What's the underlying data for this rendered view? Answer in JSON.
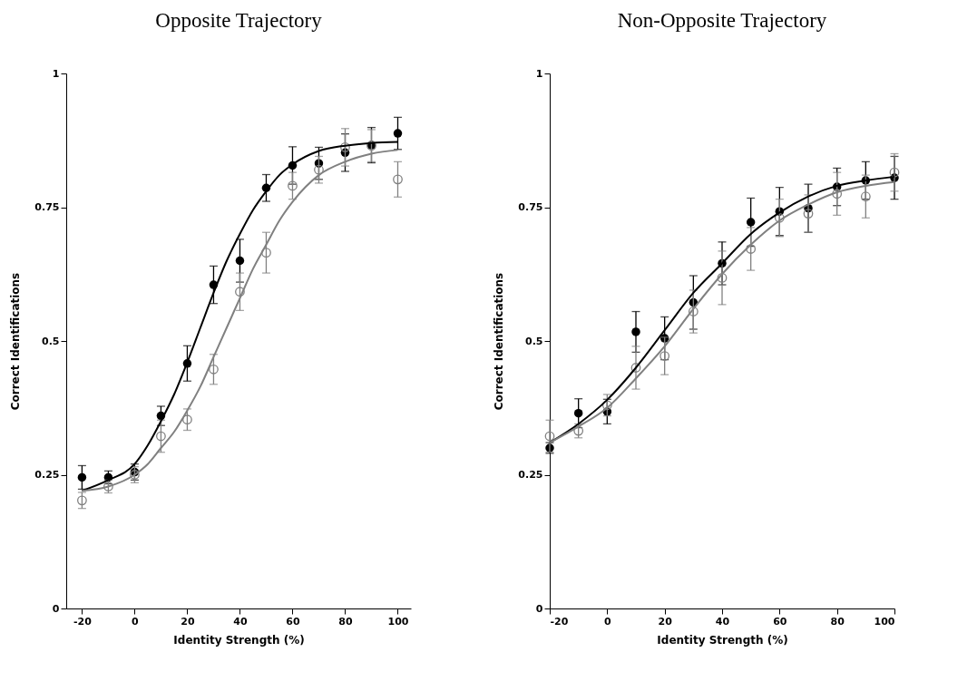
{
  "chart_data": [
    {
      "type": "scatter",
      "title": "Opposite Trajectory",
      "xlabel": "Identity Strength (%)",
      "ylabel": "Correct Identifications",
      "xlim": [
        -26,
        105
      ],
      "ylim": [
        0,
        1
      ],
      "xticks": [
        -20,
        0,
        20,
        40,
        60,
        80,
        100
      ],
      "yticks": [
        0,
        0.25,
        0.5,
        0.75,
        1
      ],
      "grid": false,
      "marker": "circle",
      "line_style": "solid",
      "x": [
        -20,
        -10,
        0,
        10,
        20,
        30,
        40,
        50,
        60,
        70,
        80,
        90,
        100
      ],
      "series": [
        {
          "color": "#000000",
          "values": [
            0.245,
            0.245,
            0.255,
            0.36,
            0.458,
            0.605,
            0.65,
            0.786,
            0.828,
            0.832,
            0.852,
            0.866,
            0.888
          ],
          "errors": [
            0.022,
            0.012,
            0.015,
            0.018,
            0.033,
            0.035,
            0.04,
            0.025,
            0.035,
            0.03,
            0.035,
            0.033,
            0.03
          ]
        },
        {
          "color": "#808080",
          "values": [
            0.202,
            0.228,
            0.25,
            0.322,
            0.353,
            0.447,
            0.592,
            0.665,
            0.79,
            0.82,
            0.862,
            0.865,
            0.802
          ],
          "errors": [
            0.015,
            0.012,
            0.015,
            0.03,
            0.02,
            0.028,
            0.035,
            0.038,
            0.025,
            0.025,
            0.035,
            0.03,
            0.033
          ]
        },
        {
          "type": "line",
          "marker": "none",
          "color": "#000000",
          "x": [
            -20,
            -10,
            0,
            5,
            10,
            15,
            20,
            25,
            30,
            35,
            40,
            45,
            50,
            55,
            60,
            70,
            80,
            90,
            100
          ],
          "values": [
            0.22,
            0.24,
            0.27,
            0.305,
            0.35,
            0.4,
            0.46,
            0.525,
            0.59,
            0.65,
            0.7,
            0.745,
            0.78,
            0.81,
            0.83,
            0.855,
            0.865,
            0.87,
            0.872
          ]
        },
        {
          "type": "line",
          "marker": "none",
          "color": "#808080",
          "x": [
            -20,
            -10,
            0,
            5,
            10,
            15,
            20,
            25,
            30,
            35,
            40,
            45,
            50,
            55,
            60,
            70,
            80,
            90,
            100
          ],
          "values": [
            0.22,
            0.228,
            0.25,
            0.27,
            0.3,
            0.33,
            0.37,
            0.415,
            0.47,
            0.525,
            0.58,
            0.635,
            0.68,
            0.725,
            0.76,
            0.81,
            0.835,
            0.85,
            0.857
          ]
        }
      ]
    },
    {
      "type": "scatter",
      "title": "Non-Opposite Trajectory",
      "xlabel": "Identity Strength (%)",
      "ylabel": "Correct Identifications",
      "xlim": [
        -20,
        100
      ],
      "ylim": [
        0,
        1
      ],
      "xticks": [
        -20,
        0,
        20,
        40,
        60,
        80,
        100
      ],
      "yticks": [
        0,
        0.25,
        0.5,
        0.75,
        1
      ],
      "grid": false,
      "marker": "circle",
      "line_style": "solid",
      "x": [
        -20,
        -10,
        0,
        10,
        20,
        30,
        40,
        50,
        60,
        70,
        80,
        90,
        100
      ],
      "series": [
        {
          "color": "#000000",
          "values": [
            0.3,
            0.365,
            0.368,
            0.517,
            0.505,
            0.572,
            0.645,
            0.722,
            0.742,
            0.748,
            0.788,
            0.8,
            0.805
          ],
          "errors": [
            0.01,
            0.027,
            0.023,
            0.038,
            0.04,
            0.05,
            0.04,
            0.045,
            0.045,
            0.045,
            0.035,
            0.035,
            0.04
          ]
        },
        {
          "color": "#808080",
          "values": [
            0.322,
            0.332,
            0.38,
            0.45,
            0.472,
            0.555,
            0.618,
            0.672,
            0.73,
            0.738,
            0.775,
            0.77,
            0.815
          ],
          "errors": [
            0.03,
            0.013,
            0.02,
            0.04,
            0.035,
            0.04,
            0.05,
            0.04,
            0.035,
            0.035,
            0.04,
            0.04,
            0.035
          ]
        },
        {
          "type": "line",
          "marker": "none",
          "color": "#000000",
          "x": [
            -20,
            -10,
            0,
            10,
            20,
            30,
            40,
            50,
            60,
            70,
            80,
            90,
            100
          ],
          "values": [
            0.31,
            0.345,
            0.39,
            0.45,
            0.52,
            0.59,
            0.645,
            0.7,
            0.74,
            0.77,
            0.79,
            0.8,
            0.807
          ]
        },
        {
          "type": "line",
          "marker": "none",
          "color": "#808080",
          "x": [
            -20,
            -10,
            0,
            10,
            20,
            30,
            40,
            50,
            60,
            70,
            80,
            90,
            100
          ],
          "values": [
            0.31,
            0.34,
            0.375,
            0.43,
            0.49,
            0.56,
            0.625,
            0.68,
            0.725,
            0.755,
            0.778,
            0.79,
            0.797
          ]
        }
      ]
    }
  ]
}
